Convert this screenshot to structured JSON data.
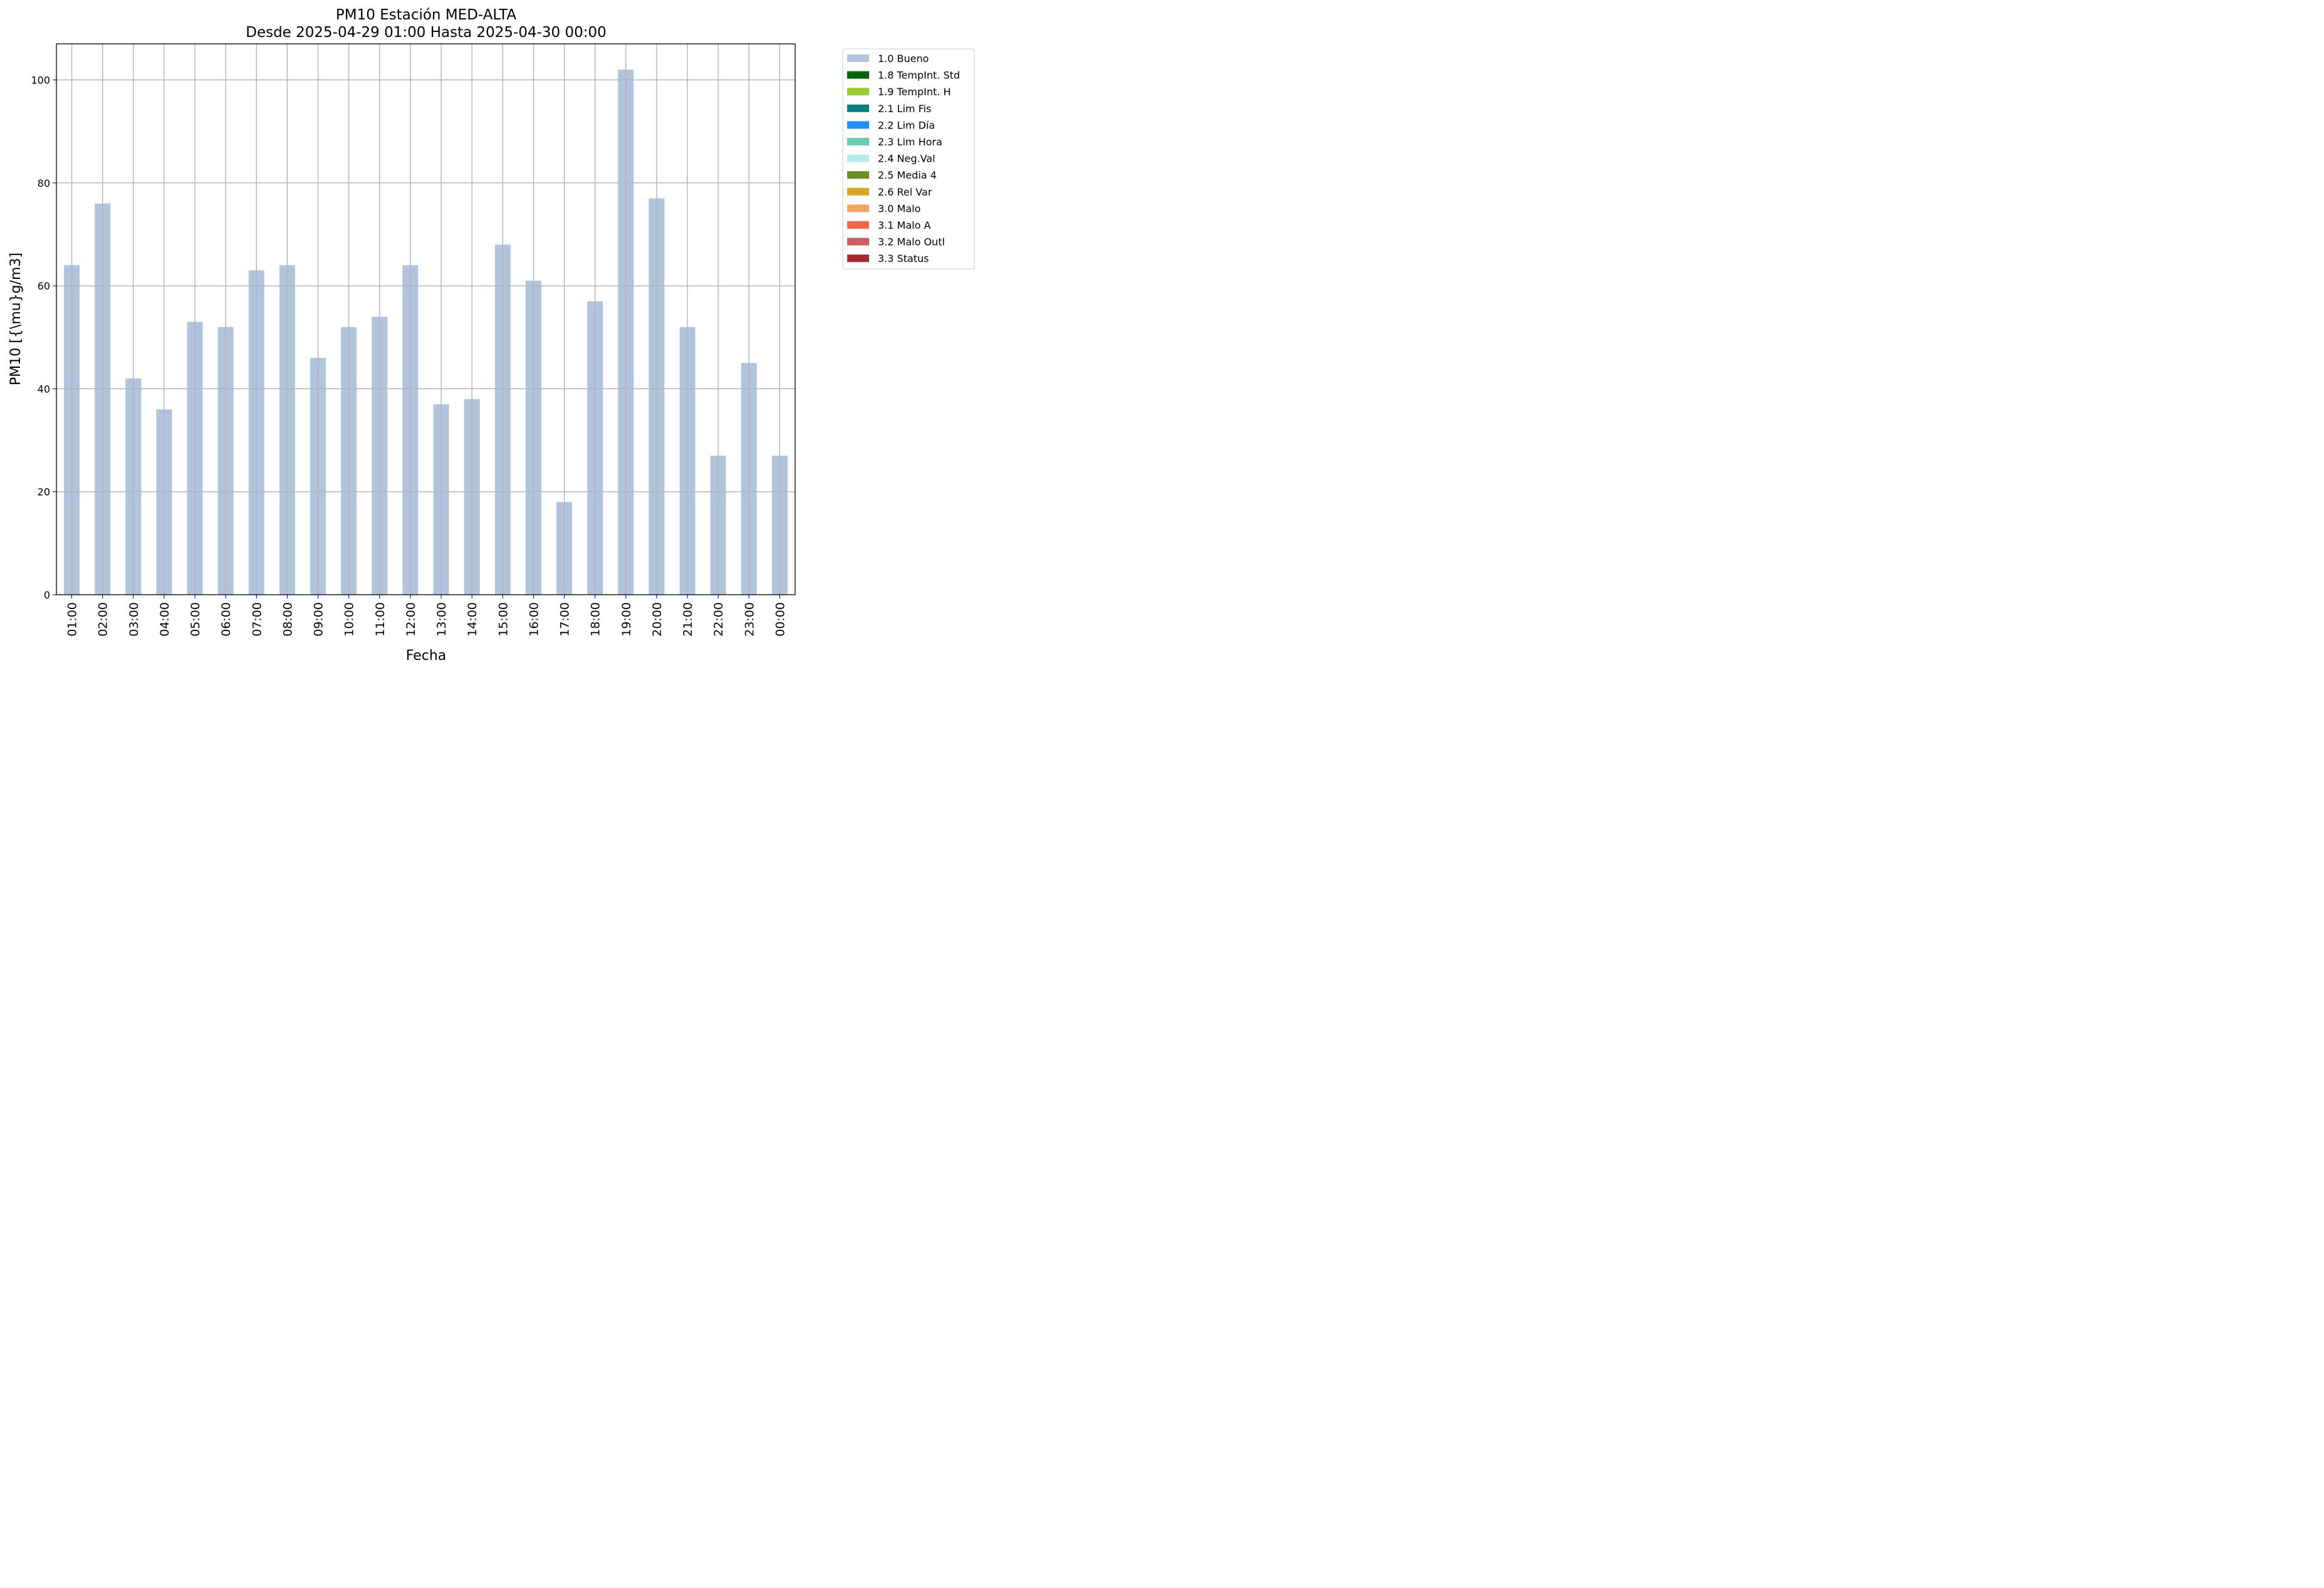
{
  "chart_data": {
    "type": "bar",
    "title": "PM10 Estación MED-ALTA",
    "subtitle": "Desde 2025-04-29 01:00 Hasta 2025-04-30 00:00",
    "xlabel": "Fecha",
    "ylabel": "PM10 [{\\mu}g/m3]",
    "ylim": [
      0,
      107
    ],
    "yticks": [
      0,
      20,
      40,
      60,
      80,
      100
    ],
    "grid": true,
    "legend_position": "outside-top-right",
    "categories": [
      "01:00",
      "02:00",
      "03:00",
      "04:00",
      "05:00",
      "06:00",
      "07:00",
      "08:00",
      "09:00",
      "10:00",
      "11:00",
      "12:00",
      "13:00",
      "14:00",
      "15:00",
      "16:00",
      "17:00",
      "18:00",
      "19:00",
      "20:00",
      "21:00",
      "22:00",
      "23:00",
      "00:00"
    ],
    "series": [
      {
        "name": "1.0 Bueno",
        "color": "#b0c4de",
        "values": [
          64,
          76,
          42,
          36,
          53,
          52,
          63,
          64,
          46,
          52,
          54,
          64,
          37,
          38,
          68,
          61,
          18,
          57,
          102,
          77,
          52,
          27,
          45,
          27
        ]
      }
    ],
    "legend": [
      {
        "label": "1.0 Bueno",
        "color": "#b0c4de"
      },
      {
        "label": "1.8 TempInt. Std",
        "color": "#006400"
      },
      {
        "label": "1.9 TempInt. H",
        "color": "#9acd32"
      },
      {
        "label": "2.1 Lim Fis",
        "color": "#008080"
      },
      {
        "label": "2.2 Lim Día",
        "color": "#1e90ff"
      },
      {
        "label": "2.3 Lim Hora",
        "color": "#66cdaa"
      },
      {
        "label": "2.4 Neg.Val",
        "color": "#afeeee"
      },
      {
        "label": "2.5 Media 4",
        "color": "#6b8e23"
      },
      {
        "label": "2.6 Rel Var",
        "color": "#daa520"
      },
      {
        "label": "3.0 Malo",
        "color": "#f4a460"
      },
      {
        "label": "3.1 Malo A",
        "color": "#ff6347"
      },
      {
        "label": "3.2 Malo Outl",
        "color": "#cd5c5c"
      },
      {
        "label": "3.3 Status",
        "color": "#a52a2a"
      }
    ]
  }
}
